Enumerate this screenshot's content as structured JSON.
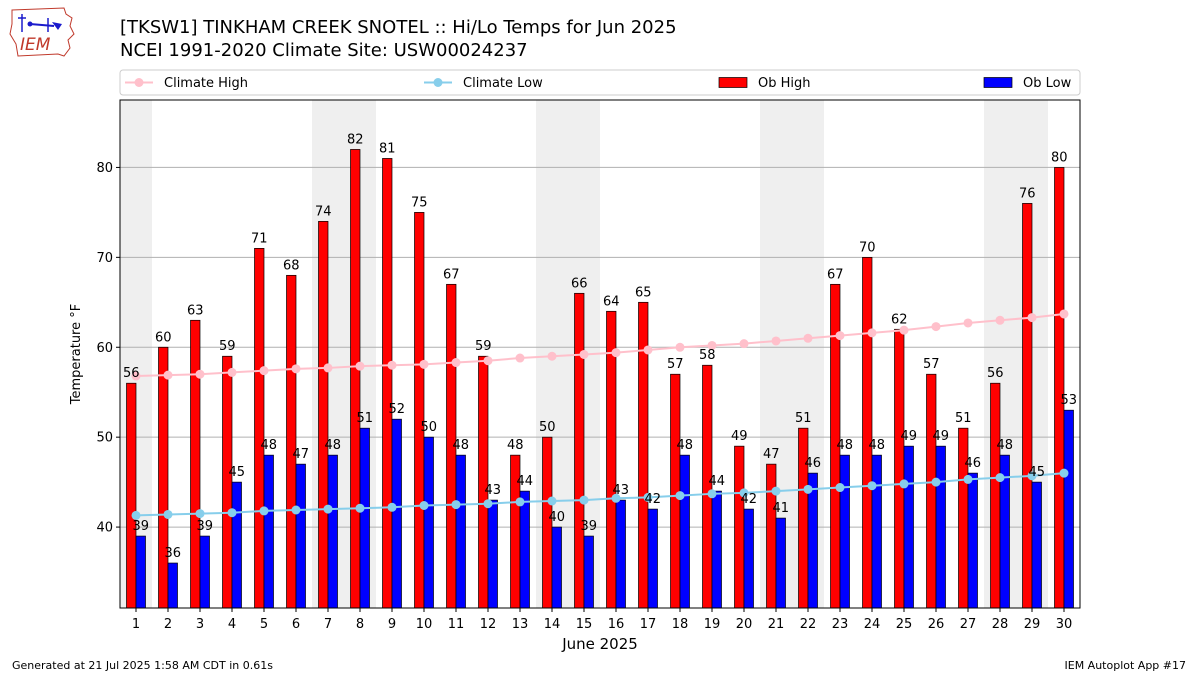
{
  "header": {
    "title_line1": "[TKSW1] TINKHAM CREEK SNOTEL :: Hi/Lo Temps for Jun 2025",
    "title_line2": "NCEI 1991-2020 Climate Site: USW00024237"
  },
  "logo": {
    "text": "IEM"
  },
  "footer": {
    "generated": "Generated at 21 Jul 2025 1:58 AM CDT in 0.61s",
    "app": "IEM Autoplot App #17"
  },
  "colors": {
    "ob_high": "#ff0000",
    "ob_low": "#0000ff",
    "climate_high": "#ffc0cb",
    "climate_low": "#87ceeb",
    "weekend_shade": "#efefef",
    "grid": "#b0b0b0"
  },
  "chart_data": {
    "type": "bar",
    "title": "[TKSW1] TINKHAM CREEK SNOTEL :: Hi/Lo Temps for Jun 2025",
    "subtitle": "NCEI 1991-2020 Climate Site: USW00024237",
    "xlabel": "June 2025",
    "ylabel": "Temperature °F",
    "categories": [
      "1",
      "2",
      "3",
      "4",
      "5",
      "6",
      "7",
      "8",
      "9",
      "10",
      "11",
      "12",
      "13",
      "14",
      "15",
      "16",
      "17",
      "18",
      "19",
      "20",
      "21",
      "22",
      "23",
      "24",
      "25",
      "26",
      "27",
      "28",
      "29",
      "30"
    ],
    "ylim": [
      31,
      87.5
    ],
    "yticks": [
      40,
      50,
      60,
      70,
      80
    ],
    "grid": "horizontal",
    "legend_position": "top",
    "shaded_days": [
      1,
      7,
      8,
      14,
      15,
      21,
      22,
      28,
      29
    ],
    "series": [
      {
        "name": "Climate High",
        "kind": "line",
        "values": [
          56.8,
          56.9,
          57.0,
          57.2,
          57.4,
          57.6,
          57.7,
          57.9,
          58.0,
          58.1,
          58.3,
          58.5,
          58.8,
          59.0,
          59.2,
          59.4,
          59.7,
          60.0,
          60.2,
          60.4,
          60.7,
          61.0,
          61.3,
          61.6,
          61.9,
          62.3,
          62.7,
          63.0,
          63.3,
          63.7
        ]
      },
      {
        "name": "Climate Low",
        "kind": "line",
        "values": [
          41.3,
          41.4,
          41.5,
          41.6,
          41.8,
          41.9,
          42.0,
          42.1,
          42.2,
          42.4,
          42.5,
          42.6,
          42.8,
          42.9,
          43.0,
          43.2,
          43.3,
          43.5,
          43.7,
          43.8,
          44.0,
          44.2,
          44.4,
          44.6,
          44.8,
          45.0,
          45.3,
          45.5,
          45.7,
          46.0
        ]
      },
      {
        "name": "Ob High",
        "kind": "bar",
        "values": [
          56,
          60,
          63,
          59,
          71,
          68,
          74,
          82,
          81,
          75,
          67,
          59,
          48,
          50,
          66,
          64,
          65,
          57,
          58,
          49,
          47,
          51,
          67,
          70,
          62,
          57,
          51,
          56,
          76,
          80
        ],
        "labels": [
          "56",
          "60",
          "63",
          "59",
          "71",
          "68",
          "74",
          "82",
          "81",
          "75",
          "67",
          "59",
          "48",
          "50",
          "66",
          "64",
          "65",
          "57",
          "58",
          "49",
          "47",
          "51",
          "67",
          "70",
          "62",
          "57",
          "51",
          "56",
          "76",
          "80"
        ]
      },
      {
        "name": "Ob Low",
        "kind": "bar",
        "values": [
          39,
          36,
          39,
          45,
          48,
          47,
          48,
          51,
          52,
          50,
          48,
          43,
          44,
          40,
          39,
          43,
          42,
          48,
          44,
          42,
          41,
          46,
          48,
          48,
          49,
          49,
          46,
          48,
          45,
          53
        ],
        "labels": [
          "39",
          "36",
          "39",
          "45",
          "48",
          "47",
          "48",
          "51",
          "52",
          "50",
          "48",
          "43",
          "44",
          "40",
          "39",
          "43",
          "42",
          "48",
          "44",
          "42",
          "41",
          "46",
          "48",
          "48",
          "49",
          "49",
          "46",
          "48",
          "45",
          "53"
        ]
      }
    ]
  }
}
